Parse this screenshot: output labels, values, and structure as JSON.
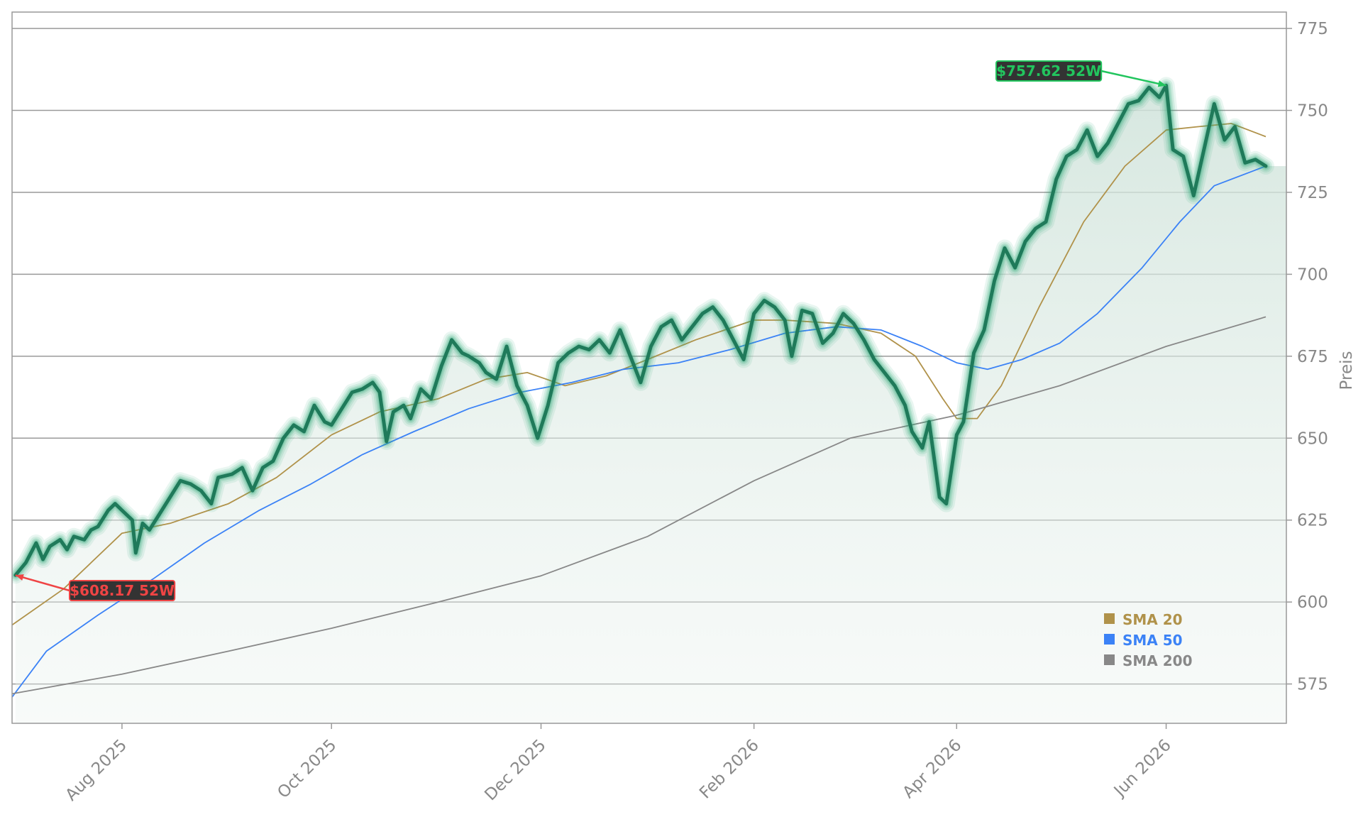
{
  "chart_data": {
    "type": "line",
    "title": "",
    "xlabel": "",
    "ylabel": "Preis",
    "x_range": [
      "2025-06-30",
      "2026-07-06"
    ],
    "ylim": [
      563,
      780
    ],
    "y_ticks": [
      575,
      600,
      625,
      650,
      675,
      700,
      725,
      750,
      775
    ],
    "x_ticks": [
      {
        "date": "2025-08-01",
        "label": "Aug 2025"
      },
      {
        "date": "2025-10-01",
        "label": "Oct 2025"
      },
      {
        "date": "2025-12-01",
        "label": "Dec 2025"
      },
      {
        "date": "2026-02-01",
        "label": "Feb 2026"
      },
      {
        "date": "2026-04-01",
        "label": "Apr 2026"
      },
      {
        "date": "2026-06-01",
        "label": "Jun 2026"
      }
    ],
    "grid": "horizontal",
    "legend_position": "bottom-right",
    "colors": {
      "price": "#1f7a5a",
      "price_glow": "#2aa876",
      "sma20": "#b0924a",
      "sma50": "#3b82f6",
      "sma200": "#888888",
      "high": "#22c55e",
      "low": "#ef4444",
      "badge_bg": "#333333",
      "grid": "#999999",
      "axis": "#999999"
    },
    "legend": [
      {
        "label": "SMA 20",
        "color": "#b0924a"
      },
      {
        "label": "SMA 50",
        "color": "#3b82f6"
      },
      {
        "label": "SMA 200",
        "color": "#888888"
      }
    ],
    "annotations": {
      "high": {
        "label": "$757.62 52W",
        "date": "2026-06-01",
        "value": 757.62
      },
      "low": {
        "label": "$608.17 52W",
        "date": "2025-07-01",
        "value": 608.17
      }
    },
    "series": [
      {
        "name": "Price",
        "points": [
          [
            "2025-07-01",
            608.2
          ],
          [
            "2025-07-04",
            612
          ],
          [
            "2025-07-07",
            618
          ],
          [
            "2025-07-09",
            613
          ],
          [
            "2025-07-11",
            617
          ],
          [
            "2025-07-14",
            619
          ],
          [
            "2025-07-16",
            616
          ],
          [
            "2025-07-18",
            620
          ],
          [
            "2025-07-21",
            619
          ],
          [
            "2025-07-23",
            622
          ],
          [
            "2025-07-25",
            623
          ],
          [
            "2025-07-28",
            628
          ],
          [
            "2025-07-30",
            630
          ],
          [
            "2025-08-01",
            628
          ],
          [
            "2025-08-04",
            625
          ],
          [
            "2025-08-05",
            615
          ],
          [
            "2025-08-07",
            624
          ],
          [
            "2025-08-09",
            622
          ],
          [
            "2025-08-12",
            627
          ],
          [
            "2025-08-15",
            632
          ],
          [
            "2025-08-18",
            637
          ],
          [
            "2025-08-21",
            636
          ],
          [
            "2025-08-24",
            634
          ],
          [
            "2025-08-27",
            630
          ],
          [
            "2025-08-29",
            638
          ],
          [
            "2025-09-02",
            639
          ],
          [
            "2025-09-05",
            641
          ],
          [
            "2025-09-08",
            634
          ],
          [
            "2025-09-11",
            641
          ],
          [
            "2025-09-14",
            643
          ],
          [
            "2025-09-17",
            650
          ],
          [
            "2025-09-20",
            654
          ],
          [
            "2025-09-23",
            652
          ],
          [
            "2025-09-26",
            660
          ],
          [
            "2025-09-29",
            655
          ],
          [
            "2025-10-01",
            654
          ],
          [
            "2025-10-04",
            659
          ],
          [
            "2025-10-07",
            664
          ],
          [
            "2025-10-10",
            665
          ],
          [
            "2025-10-13",
            667
          ],
          [
            "2025-10-15",
            664
          ],
          [
            "2025-10-17",
            649
          ],
          [
            "2025-10-19",
            658
          ],
          [
            "2025-10-22",
            660
          ],
          [
            "2025-10-24",
            656
          ],
          [
            "2025-10-27",
            665
          ],
          [
            "2025-10-30",
            662
          ],
          [
            "2025-11-02",
            672
          ],
          [
            "2025-11-05",
            680
          ],
          [
            "2025-11-08",
            676
          ],
          [
            "2025-11-10",
            675
          ],
          [
            "2025-11-13",
            673
          ],
          [
            "2025-11-15",
            670
          ],
          [
            "2025-11-18",
            668
          ],
          [
            "2025-11-21",
            678
          ],
          [
            "2025-11-24",
            666
          ],
          [
            "2025-11-27",
            660
          ],
          [
            "2025-11-30",
            650
          ],
          [
            "2025-12-03",
            660
          ],
          [
            "2025-12-06",
            673
          ],
          [
            "2025-12-09",
            676
          ],
          [
            "2025-12-12",
            678
          ],
          [
            "2025-12-15",
            677
          ],
          [
            "2025-12-18",
            680
          ],
          [
            "2025-12-21",
            676
          ],
          [
            "2025-12-24",
            683
          ],
          [
            "2025-12-27",
            675
          ],
          [
            "2025-12-30",
            667
          ],
          [
            "2026-01-02",
            678
          ],
          [
            "2026-01-05",
            684
          ],
          [
            "2026-01-08",
            686
          ],
          [
            "2026-01-11",
            680
          ],
          [
            "2026-01-14",
            684
          ],
          [
            "2026-01-17",
            688
          ],
          [
            "2026-01-20",
            690
          ],
          [
            "2026-01-23",
            686
          ],
          [
            "2026-01-26",
            680
          ],
          [
            "2026-01-29",
            674
          ],
          [
            "2026-02-01",
            688
          ],
          [
            "2026-02-04",
            692
          ],
          [
            "2026-02-07",
            690
          ],
          [
            "2026-02-10",
            686
          ],
          [
            "2026-02-12",
            675
          ],
          [
            "2026-02-15",
            689
          ],
          [
            "2026-02-18",
            688
          ],
          [
            "2026-02-21",
            679
          ],
          [
            "2026-02-24",
            682
          ],
          [
            "2026-02-27",
            688
          ],
          [
            "2026-03-02",
            685
          ],
          [
            "2026-03-05",
            680
          ],
          [
            "2026-03-08",
            674
          ],
          [
            "2026-03-11",
            670
          ],
          [
            "2026-03-14",
            666
          ],
          [
            "2026-03-17",
            660
          ],
          [
            "2026-03-19",
            652
          ],
          [
            "2026-03-22",
            647
          ],
          [
            "2026-03-24",
            655
          ],
          [
            "2026-03-27",
            632
          ],
          [
            "2026-03-29",
            630
          ],
          [
            "2026-04-01",
            651
          ],
          [
            "2026-04-03",
            655
          ],
          [
            "2026-04-06",
            676
          ],
          [
            "2026-04-09",
            683
          ],
          [
            "2026-04-12",
            698
          ],
          [
            "2026-04-15",
            708
          ],
          [
            "2026-04-18",
            702
          ],
          [
            "2026-04-21",
            710
          ],
          [
            "2026-04-24",
            714
          ],
          [
            "2026-04-27",
            716
          ],
          [
            "2026-04-30",
            729
          ],
          [
            "2026-05-03",
            736
          ],
          [
            "2026-05-06",
            738
          ],
          [
            "2026-05-09",
            744
          ],
          [
            "2026-05-12",
            736
          ],
          [
            "2026-05-15",
            740
          ],
          [
            "2026-05-18",
            746
          ],
          [
            "2026-05-21",
            752
          ],
          [
            "2026-05-24",
            753
          ],
          [
            "2026-05-27",
            757
          ],
          [
            "2026-05-30",
            754
          ],
          [
            "2026-06-01",
            757.6
          ],
          [
            "2026-06-03",
            738
          ],
          [
            "2026-06-06",
            736
          ],
          [
            "2026-06-09",
            724
          ],
          [
            "2026-06-12",
            738
          ],
          [
            "2026-06-15",
            752
          ],
          [
            "2026-06-18",
            741
          ],
          [
            "2026-06-21",
            745
          ],
          [
            "2026-06-24",
            734
          ],
          [
            "2026-06-27",
            735
          ],
          [
            "2026-06-30",
            733
          ]
        ]
      },
      {
        "name": "SMA 20",
        "points": [
          [
            "2025-06-30",
            593
          ],
          [
            "2025-07-15",
            604
          ],
          [
            "2025-08-01",
            621
          ],
          [
            "2025-08-15",
            624
          ],
          [
            "2025-09-01",
            630
          ],
          [
            "2025-09-15",
            638
          ],
          [
            "2025-10-01",
            651
          ],
          [
            "2025-10-15",
            658
          ],
          [
            "2025-11-01",
            662
          ],
          [
            "2025-11-15",
            668
          ],
          [
            "2025-11-27",
            670
          ],
          [
            "2025-12-08",
            666
          ],
          [
            "2025-12-20",
            669
          ],
          [
            "2026-01-01",
            674
          ],
          [
            "2026-01-15",
            680
          ],
          [
            "2026-02-01",
            686
          ],
          [
            "2026-02-10",
            686
          ],
          [
            "2026-02-25",
            685
          ],
          [
            "2026-03-10",
            682
          ],
          [
            "2026-03-20",
            675
          ],
          [
            "2026-03-28",
            662
          ],
          [
            "2026-04-01",
            656
          ],
          [
            "2026-04-07",
            656
          ],
          [
            "2026-04-14",
            666
          ],
          [
            "2026-04-25",
            690
          ],
          [
            "2026-05-08",
            716
          ],
          [
            "2026-05-20",
            733
          ],
          [
            "2026-06-01",
            744
          ],
          [
            "2026-06-10",
            745
          ],
          [
            "2026-06-20",
            746
          ],
          [
            "2026-06-30",
            742
          ]
        ]
      },
      {
        "name": "SMA 50",
        "points": [
          [
            "2025-06-30",
            571
          ],
          [
            "2025-07-10",
            585
          ],
          [
            "2025-07-25",
            596
          ],
          [
            "2025-08-10",
            607
          ],
          [
            "2025-08-25",
            618
          ],
          [
            "2025-09-10",
            628
          ],
          [
            "2025-09-25",
            636
          ],
          [
            "2025-10-10",
            645
          ],
          [
            "2025-10-25",
            652
          ],
          [
            "2025-11-10",
            659
          ],
          [
            "2025-11-25",
            664
          ],
          [
            "2025-12-10",
            667
          ],
          [
            "2025-12-25",
            671
          ],
          [
            "2026-01-10",
            673
          ],
          [
            "2026-01-25",
            677
          ],
          [
            "2026-02-10",
            682
          ],
          [
            "2026-02-25",
            684
          ],
          [
            "2026-03-10",
            683
          ],
          [
            "2026-03-22",
            678
          ],
          [
            "2026-04-01",
            673
          ],
          [
            "2026-04-10",
            671
          ],
          [
            "2026-04-20",
            674
          ],
          [
            "2026-05-01",
            679
          ],
          [
            "2026-05-12",
            688
          ],
          [
            "2026-05-25",
            702
          ],
          [
            "2026-06-05",
            716
          ],
          [
            "2026-06-15",
            727
          ],
          [
            "2026-06-30",
            733
          ]
        ]
      },
      {
        "name": "SMA 200",
        "points": [
          [
            "2025-06-30",
            572
          ],
          [
            "2025-08-01",
            578
          ],
          [
            "2025-09-01",
            585
          ],
          [
            "2025-10-01",
            592
          ],
          [
            "2025-11-01",
            600
          ],
          [
            "2025-12-01",
            608
          ],
          [
            "2026-01-01",
            620
          ],
          [
            "2026-02-01",
            637
          ],
          [
            "2026-03-01",
            650
          ],
          [
            "2026-04-01",
            657
          ],
          [
            "2026-05-01",
            666
          ],
          [
            "2026-06-01",
            678
          ],
          [
            "2026-06-30",
            687
          ]
        ]
      }
    ]
  }
}
